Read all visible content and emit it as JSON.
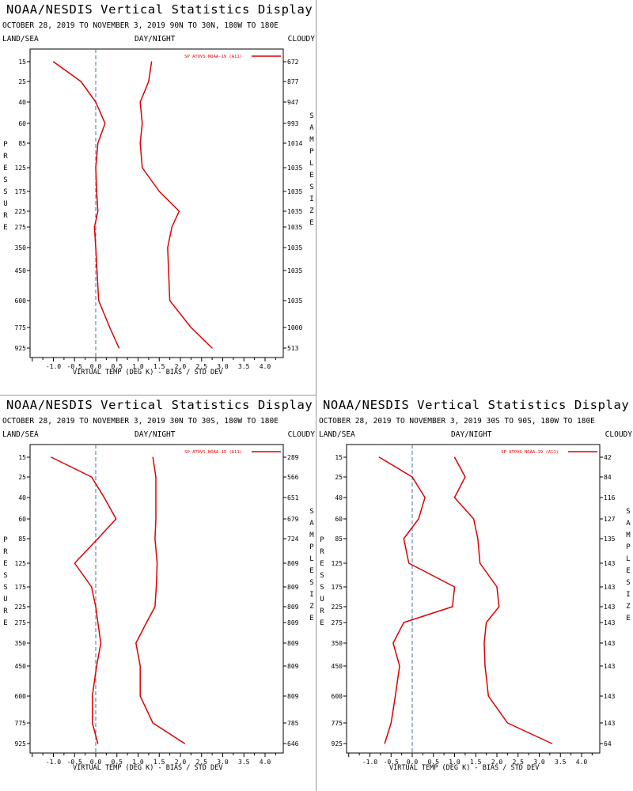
{
  "panels": [
    {
      "title": "NOAA/NESDIS Vertical Statistics Display",
      "subtitle": "OCTOBER 28, 2019 TO NOVEMBER 3, 2019  90N TO 30N, 180W TO 180E",
      "header_left": "LAND/SEA",
      "header_mid": "DAY/NIGHT",
      "header_right": "CLOUDY",
      "xlabel": "VIRTUAL TEMP (DEG K) - BIAS / STD DEV",
      "left_axis_letters": [
        "P",
        "R",
        "E",
        "S",
        "S",
        "U",
        "R",
        "E"
      ],
      "right_axis_letters": [
        "S",
        "A",
        "M",
        "P",
        "L",
        "E",
        " ",
        "S",
        "I",
        "Z",
        "E"
      ]
    },
    {
      "title": "NOAA/NESDIS Vertical Statistics Display",
      "subtitle": "OCTOBER 28, 2019 TO NOVEMBER 3, 2019  30N TO 30S, 180W TO 180E",
      "header_left": "LAND/SEA",
      "header_mid": "DAY/NIGHT",
      "header_right": "CLOUDY",
      "xlabel": "VIRTUAL TEMP (DEG K) - BIAS / STD DEV",
      "left_axis_letters": [
        "P",
        "R",
        "E",
        "S",
        "S",
        "U",
        "R",
        "E"
      ],
      "right_axis_letters": [
        "S",
        "A",
        "M",
        "P",
        "L",
        "E",
        " ",
        "S",
        "I",
        "Z",
        "E"
      ]
    },
    {
      "title": "NOAA/NESDIS Vertical Statistics Display",
      "subtitle": "OCTOBER 28, 2019 TO NOVEMBER 3, 2019  30S TO 90S, 180W TO 180E",
      "header_left": "LAND/SEA",
      "header_mid": "DAY/NIGHT",
      "header_right": "CLOUDY",
      "xlabel": "VIRTUAL TEMP (DEG K) - BIAS / STD DEV",
      "left_axis_letters": [
        "P",
        "R",
        "E",
        "S",
        "S",
        "U",
        "R",
        "E"
      ],
      "right_axis_letters": [
        "S",
        "A",
        "M",
        "P",
        "L",
        "E",
        " ",
        "S",
        "I",
        "Z",
        "E"
      ]
    }
  ],
  "chart_data": [
    {
      "type": "line",
      "title": "NOAA/NESDIS Vertical Statistics Display",
      "subtitle": "OCTOBER 28, 2019 TO NOVEMBER 3, 2019  90N TO 30N, 180W TO 180E",
      "xlabel": "VIRTUAL TEMP (DEG K) - BIAS / STD DEV",
      "ylabel": "PRESSURE",
      "y2label": "SAMPLE SIZE",
      "xlim": [
        -1.5,
        4.25
      ],
      "xticks": [
        "-1.0",
        "-0.5",
        "0.0",
        "0.5",
        "1.0",
        "1.5",
        "2.0",
        "2.5",
        "3.0",
        "3.5",
        "4.0"
      ],
      "pressure_levels": [
        "15",
        "25",
        "40",
        "60",
        "85",
        "125",
        "175",
        "225",
        "275",
        "350",
        "450",
        "600",
        "775",
        "925"
      ],
      "sample_size": [
        "672",
        "877",
        "947",
        "993",
        "1014",
        "1035",
        "1035",
        "1035",
        "1035",
        "1035",
        "1035",
        "1035",
        "1000",
        "513"
      ],
      "legend": "SP ATOVS NOAA-19 (A11)",
      "legend_position": "top-right",
      "line_color": "#dd0000",
      "zero_line": true,
      "series": [
        {
          "label": "bias",
          "values": [
            -1.0,
            -0.35,
            0.0,
            0.22,
            0.05,
            0.0,
            0.02,
            0.05,
            -0.03,
            0.0,
            0.03,
            0.07,
            0.33,
            0.55
          ]
        },
        {
          "label": "std dev",
          "values": [
            1.32,
            1.25,
            1.05,
            1.1,
            1.05,
            1.1,
            1.5,
            1.97,
            1.8,
            1.7,
            1.72,
            1.75,
            2.25,
            2.75
          ]
        }
      ]
    },
    {
      "type": "line",
      "title": "NOAA/NESDIS Vertical Statistics Display",
      "subtitle": "OCTOBER 28, 2019 TO NOVEMBER 3, 2019  30N TO 30S, 180W TO 180E",
      "xlabel": "VIRTUAL TEMP (DEG K) - BIAS / STD DEV",
      "ylabel": "PRESSURE",
      "y2label": "SAMPLE SIZE",
      "xlim": [
        -1.5,
        4.25
      ],
      "xticks": [
        "-1.0",
        "-0.5",
        "0.0",
        "0.5",
        "1.0",
        "1.5",
        "2.0",
        "2.5",
        "3.0",
        "3.5",
        "4.0"
      ],
      "pressure_levels": [
        "15",
        "25",
        "40",
        "60",
        "85",
        "125",
        "175",
        "225",
        "275",
        "350",
        "450",
        "600",
        "775",
        "925"
      ],
      "sample_size": [
        "289",
        "566",
        "651",
        "679",
        "724",
        "809",
        "809",
        "809",
        "809",
        "809",
        "809",
        "809",
        "785",
        "646"
      ],
      "legend": "SP ATOVS NOAA-19 (A11)",
      "legend_position": "top-right",
      "line_color": "#dd0000",
      "zero_line": true,
      "series": [
        {
          "label": "bias",
          "values": [
            -1.05,
            -0.1,
            0.2,
            0.48,
            0.05,
            -0.5,
            -0.1,
            0.0,
            0.05,
            0.12,
            0.02,
            -0.08,
            -0.08,
            0.05
          ]
        },
        {
          "label": "std dev",
          "values": [
            1.35,
            1.42,
            1.42,
            1.42,
            1.4,
            1.45,
            1.43,
            1.4,
            1.2,
            0.95,
            1.05,
            1.05,
            1.35,
            2.1
          ]
        }
      ]
    },
    {
      "type": "line",
      "title": "NOAA/NESDIS Vertical Statistics Display",
      "subtitle": "OCTOBER 28, 2019 TO NOVEMBER 3, 2019  30S TO 90S, 180W TO 180E",
      "xlabel": "VIRTUAL TEMP (DEG K) - BIAS / STD DEV",
      "ylabel": "PRESSURE",
      "y2label": "SAMPLE SIZE",
      "xlim": [
        -1.5,
        4.25
      ],
      "xticks": [
        "-1.0",
        "-0.5",
        "0.0",
        "0.5",
        "1.0",
        "1.5",
        "2.0",
        "2.5",
        "3.0",
        "3.5",
        "4.0"
      ],
      "pressure_levels": [
        "15",
        "25",
        "40",
        "60",
        "85",
        "125",
        "175",
        "225",
        "275",
        "350",
        "450",
        "600",
        "775",
        "925"
      ],
      "sample_size": [
        "42",
        "84",
        "116",
        "127",
        "135",
        "143",
        "143",
        "143",
        "143",
        "143",
        "143",
        "143",
        "143",
        "64"
      ],
      "legend": "SP ATOVS NOAA-19 (A11)",
      "legend_position": "top-right",
      "line_color": "#dd0000",
      "zero_line": true,
      "series": [
        {
          "label": "bias",
          "values": [
            -0.78,
            0.0,
            0.3,
            0.15,
            -0.2,
            -0.08,
            1.0,
            0.95,
            -0.2,
            -0.45,
            -0.3,
            -0.4,
            -0.5,
            -0.65
          ]
        },
        {
          "label": "std dev",
          "values": [
            1.0,
            1.25,
            1.0,
            1.45,
            1.55,
            1.6,
            2.0,
            2.05,
            1.75,
            1.7,
            1.72,
            1.8,
            2.25,
            3.3
          ]
        }
      ]
    }
  ]
}
